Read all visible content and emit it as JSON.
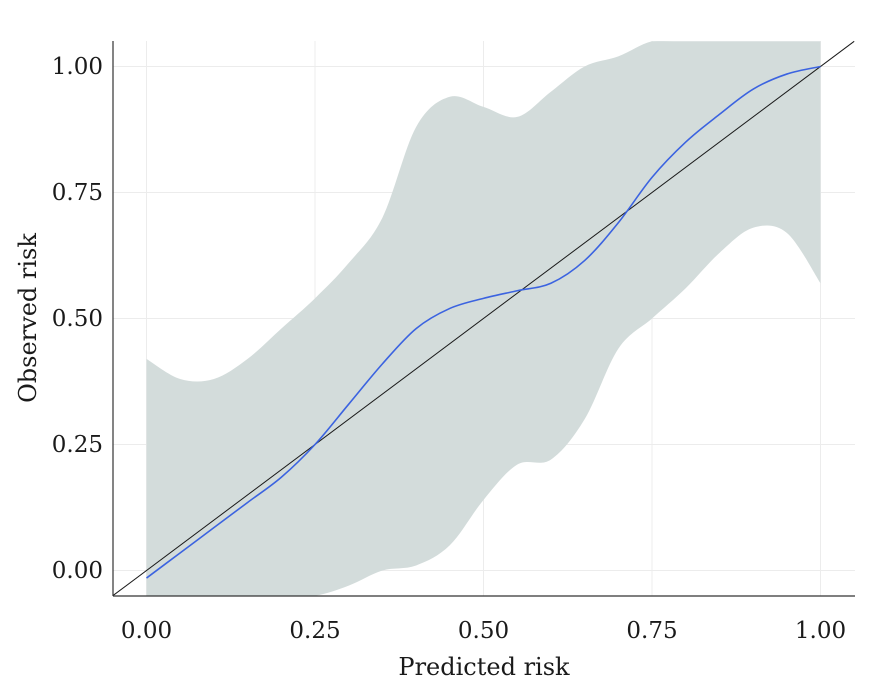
{
  "chart_data": {
    "type": "line",
    "xlabel": "Predicted risk",
    "ylabel": "Observed risk",
    "xlim": [
      -0.05,
      1.05
    ],
    "ylim": [
      -0.05,
      1.05
    ],
    "x_ticks": [
      0.0,
      0.25,
      0.5,
      0.75,
      1.0
    ],
    "x_tick_labels": [
      "0.00",
      "0.25",
      "0.50",
      "0.75",
      "1.00"
    ],
    "y_ticks": [
      0.0,
      0.25,
      0.5,
      0.75,
      1.0
    ],
    "y_tick_labels": [
      "0.00",
      "0.25",
      "0.50",
      "0.75",
      "1.00"
    ],
    "grid": true,
    "colors": {
      "calibration": "#3b63e0",
      "reference": "#1a1a1a",
      "band": "#d3dcdb"
    },
    "series": [
      {
        "role": "calibration curve",
        "x": [
          0.0,
          0.05,
          0.1,
          0.15,
          0.2,
          0.25,
          0.3,
          0.35,
          0.4,
          0.45,
          0.5,
          0.55,
          0.6,
          0.65,
          0.7,
          0.75,
          0.8,
          0.85,
          0.9,
          0.95,
          1.0
        ],
        "y": [
          -0.015,
          0.035,
          0.085,
          0.135,
          0.185,
          0.25,
          0.33,
          0.41,
          0.48,
          0.52,
          0.54,
          0.555,
          0.57,
          0.615,
          0.69,
          0.78,
          0.85,
          0.905,
          0.955,
          0.985,
          1.0
        ]
      },
      {
        "role": "reference diagonal",
        "x": [
          -0.05,
          1.05
        ],
        "y": [
          -0.05,
          1.05
        ]
      }
    ],
    "band": {
      "role": "confidence band",
      "x": [
        0.0,
        0.05,
        0.1,
        0.15,
        0.2,
        0.25,
        0.3,
        0.35,
        0.4,
        0.45,
        0.5,
        0.55,
        0.6,
        0.65,
        0.7,
        0.75,
        0.8,
        0.85,
        0.9,
        0.95,
        1.0
      ],
      "upper": [
        0.42,
        0.38,
        0.38,
        0.42,
        0.48,
        0.54,
        0.61,
        0.7,
        0.88,
        0.94,
        0.92,
        0.9,
        0.95,
        1.0,
        1.02,
        1.05,
        1.05,
        1.05,
        1.05,
        1.05,
        1.05
      ],
      "lower": [
        -0.05,
        -0.05,
        -0.05,
        -0.05,
        -0.05,
        -0.05,
        -0.03,
        0.0,
        0.01,
        0.05,
        0.14,
        0.21,
        0.22,
        0.3,
        0.44,
        0.5,
        0.56,
        0.63,
        0.68,
        0.67,
        0.57
      ]
    }
  }
}
